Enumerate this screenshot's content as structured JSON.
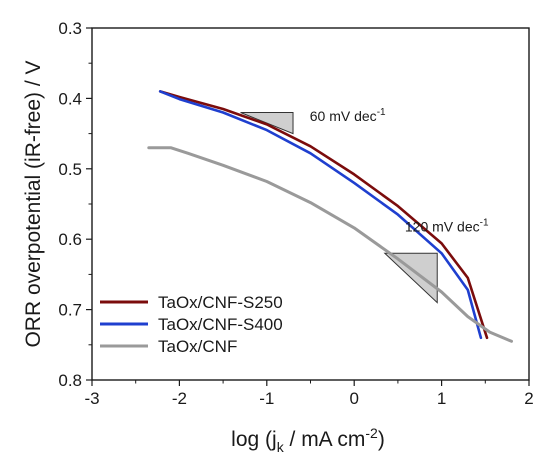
{
  "chart_data": {
    "type": "line",
    "title": "",
    "xlabel": {
      "pre": "log (j",
      "sub": "k",
      "mid": " / mA cm",
      "sup": "-2",
      "post": ")"
    },
    "ylabel": "ORR overpotential (iR-free) / V",
    "xlim": [
      -3,
      2
    ],
    "ylim": [
      0.8,
      0.3
    ],
    "y_inverted": true,
    "x_ticks": [
      "-3",
      "-2",
      "-1",
      "0",
      "1",
      "2"
    ],
    "x_tick_values": [
      -3,
      -2,
      -1,
      0,
      1,
      2
    ],
    "y_ticks": [
      "0.3",
      "0.4",
      "0.5",
      "0.6",
      "0.7",
      "0.8"
    ],
    "y_tick_values": [
      0.3,
      0.4,
      0.5,
      0.6,
      0.7,
      0.8
    ],
    "grid": false,
    "legend_position": "bottom-left",
    "series": [
      {
        "name": "TaOx/CNF-S250",
        "color": "#7b0c0c",
        "points": [
          [
            -2.22,
            0.39
          ],
          [
            -2.0,
            0.398
          ],
          [
            -1.5,
            0.415
          ],
          [
            -1.0,
            0.437
          ],
          [
            -0.5,
            0.468
          ],
          [
            0.0,
            0.508
          ],
          [
            0.5,
            0.553
          ],
          [
            1.0,
            0.606
          ],
          [
            1.3,
            0.655
          ],
          [
            1.52,
            0.74
          ]
        ]
      },
      {
        "name": "TaOx/CNF-S400",
        "color": "#1f3fcf",
        "points": [
          [
            -2.22,
            0.39
          ],
          [
            -2.0,
            0.401
          ],
          [
            -1.5,
            0.42
          ],
          [
            -1.0,
            0.445
          ],
          [
            -0.5,
            0.478
          ],
          [
            0.0,
            0.52
          ],
          [
            0.5,
            0.565
          ],
          [
            1.0,
            0.62
          ],
          [
            1.3,
            0.672
          ],
          [
            1.45,
            0.74
          ]
        ]
      },
      {
        "name": "TaOx/CNF",
        "color": "#9a9a9a",
        "points": [
          [
            -2.35,
            0.47
          ],
          [
            -2.1,
            0.47
          ],
          [
            -1.9,
            0.478
          ],
          [
            -1.5,
            0.495
          ],
          [
            -1.0,
            0.518
          ],
          [
            -0.5,
            0.548
          ],
          [
            0.0,
            0.584
          ],
          [
            0.5,
            0.628
          ],
          [
            1.0,
            0.675
          ],
          [
            1.3,
            0.71
          ],
          [
            1.55,
            0.732
          ],
          [
            1.8,
            0.745
          ]
        ]
      }
    ],
    "annotations": [
      {
        "text": "60 mV dec",
        "sup": "-1"
      },
      {
        "text": "120 mV dec",
        "sup": "-1"
      }
    ],
    "slope_triangles": [
      {
        "x": [
          -1.3,
          -0.7
        ],
        "y": [
          0.42,
          0.45
        ],
        "label": "60 mV dec-1"
      },
      {
        "x": [
          0.35,
          0.95
        ],
        "y": [
          0.62,
          0.69
        ],
        "label": "120 mV dec-1"
      }
    ]
  }
}
